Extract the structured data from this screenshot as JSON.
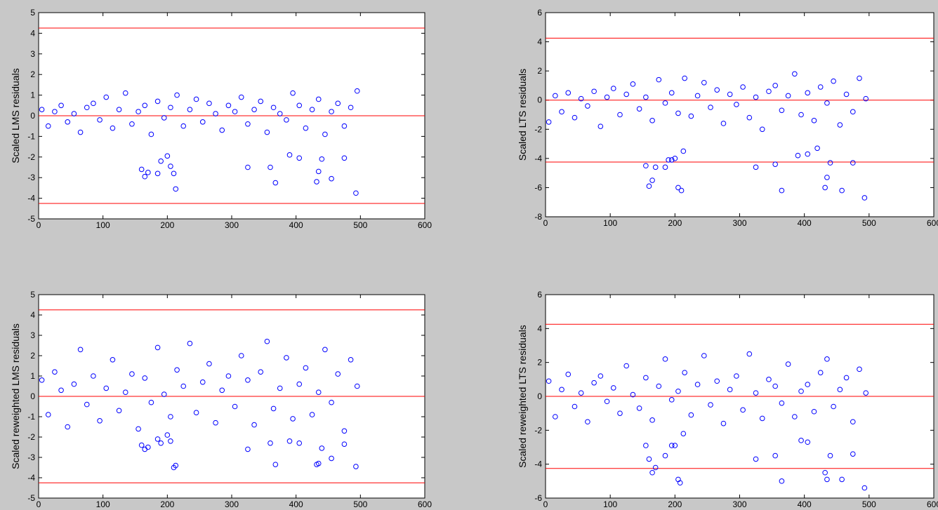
{
  "chart_data": [
    {
      "type": "scatter",
      "y_label": "Scaled LMS residuals",
      "color": "#0000ff",
      "hlines": [
        4.25,
        0,
        -4.25
      ],
      "hline_color": "#ff0000",
      "xlim": [
        0,
        600
      ],
      "xticks": [
        0,
        100,
        200,
        300,
        400,
        500,
        600
      ],
      "ylim": [
        -5,
        5
      ],
      "yticks": [
        -5,
        -4,
        -3,
        -2,
        -1,
        0,
        1,
        2,
        3,
        4,
        5
      ],
      "x": [
        5,
        15,
        25,
        35,
        45,
        55,
        65,
        75,
        85,
        95,
        105,
        115,
        125,
        135,
        145,
        155,
        165,
        175,
        185,
        195,
        205,
        215,
        225,
        235,
        245,
        255,
        265,
        275,
        285,
        295,
        305,
        315,
        325,
        335,
        345,
        355,
        365,
        375,
        385,
        395,
        405,
        415,
        425,
        435,
        445,
        455,
        465,
        475,
        485,
        495,
        160,
        165,
        170,
        185,
        190,
        200,
        205,
        210,
        213,
        325,
        360,
        368,
        390,
        405,
        432,
        435,
        440,
        455,
        475,
        493
      ],
      "values": [
        0.3,
        -0.5,
        0.2,
        0.5,
        -0.3,
        0.1,
        -0.8,
        0.4,
        0.6,
        -0.2,
        0.9,
        -0.6,
        0.3,
        1.1,
        -0.4,
        0.2,
        0.5,
        -0.9,
        0.7,
        -0.1,
        0.4,
        1.0,
        -0.5,
        0.3,
        0.8,
        -0.3,
        0.6,
        0.1,
        -0.7,
        0.5,
        0.2,
        0.9,
        -0.4,
        0.3,
        0.7,
        -0.8,
        0.4,
        0.1,
        -0.2,
        1.1,
        0.5,
        -0.6,
        0.3,
        0.8,
        -0.9,
        0.2,
        0.6,
        -0.5,
        0.4,
        1.2,
        -2.6,
        -2.95,
        -2.75,
        -2.8,
        -2.2,
        -1.95,
        -2.45,
        -2.8,
        -3.55,
        -2.5,
        -2.5,
        -3.25,
        -1.9,
        -2.05,
        -3.2,
        -2.7,
        -2.1,
        -3.05,
        -2.05,
        -3.75
      ]
    },
    {
      "type": "scatter",
      "y_label": "Scaled LTS residuals",
      "color": "#0000ff",
      "hlines": [
        4.25,
        0,
        -4.25
      ],
      "hline_color": "#ff0000",
      "xlim": [
        0,
        600
      ],
      "xticks": [
        0,
        100,
        200,
        300,
        400,
        500,
        600
      ],
      "ylim": [
        -8,
        6
      ],
      "yticks": [
        -8,
        -6,
        -4,
        -2,
        0,
        2,
        4,
        6
      ],
      "x": [
        5,
        15,
        25,
        35,
        45,
        55,
        65,
        75,
        85,
        95,
        105,
        115,
        125,
        135,
        145,
        155,
        165,
        175,
        185,
        195,
        205,
        215,
        225,
        235,
        245,
        255,
        265,
        275,
        285,
        295,
        305,
        315,
        325,
        335,
        345,
        355,
        365,
        375,
        385,
        395,
        405,
        415,
        425,
        435,
        445,
        455,
        465,
        475,
        485,
        495,
        155,
        160,
        165,
        170,
        185,
        190,
        195,
        200,
        205,
        210,
        213,
        325,
        355,
        365,
        390,
        405,
        420,
        432,
        435,
        440,
        458,
        475,
        493
      ],
      "values": [
        -1.5,
        0.3,
        -0.8,
        0.5,
        -1.2,
        0.1,
        -0.4,
        0.6,
        -1.8,
        0.2,
        0.8,
        -1.0,
        0.4,
        1.1,
        -0.6,
        0.2,
        -1.4,
        1.4,
        -0.2,
        0.5,
        -0.9,
        1.5,
        -1.1,
        0.3,
        1.2,
        -0.5,
        0.7,
        -1.6,
        0.4,
        -0.3,
        0.9,
        -1.2,
        0.2,
        -2.0,
        0.6,
        1.0,
        -0.7,
        0.3,
        1.8,
        -1.0,
        0.5,
        -1.4,
        0.9,
        -0.2,
        1.3,
        -1.7,
        0.4,
        -0.8,
        1.5,
        0.1,
        -4.5,
        -5.9,
        -5.5,
        -4.6,
        -4.6,
        -4.1,
        -4.1,
        -4.0,
        -6.0,
        -6.2,
        -3.5,
        -4.6,
        -4.4,
        -6.2,
        -3.8,
        -3.7,
        -3.3,
        -6.0,
        -5.3,
        -4.3,
        -6.2,
        -4.3,
        -6.7
      ]
    },
    {
      "type": "scatter",
      "y_label": "Scaled reweighted LMS residuals",
      "color": "#0000ff",
      "hlines": [
        4.25,
        0,
        -4.25
      ],
      "hline_color": "#ff0000",
      "xlim": [
        0,
        600
      ],
      "xticks": [
        0,
        100,
        200,
        300,
        400,
        500,
        600
      ],
      "ylim": [
        -5,
        5
      ],
      "yticks": [
        -5,
        -4,
        -3,
        -2,
        -1,
        0,
        1,
        2,
        3,
        4,
        5
      ],
      "x": [
        5,
        15,
        25,
        35,
        45,
        55,
        65,
        75,
        85,
        95,
        105,
        115,
        125,
        135,
        145,
        155,
        165,
        175,
        185,
        195,
        205,
        215,
        225,
        235,
        245,
        255,
        265,
        275,
        285,
        295,
        305,
        315,
        325,
        335,
        345,
        355,
        365,
        375,
        385,
        395,
        405,
        415,
        425,
        435,
        445,
        455,
        465,
        475,
        485,
        495,
        160,
        165,
        170,
        185,
        190,
        200,
        205,
        210,
        213,
        325,
        360,
        368,
        390,
        405,
        432,
        435,
        440,
        455,
        475,
        493
      ],
      "values": [
        0.8,
        -0.9,
        1.2,
        0.3,
        -1.5,
        0.6,
        2.3,
        -0.4,
        1.0,
        -1.2,
        0.4,
        1.8,
        -0.7,
        0.2,
        1.1,
        -1.6,
        0.9,
        -0.3,
        2.4,
        0.1,
        -1.0,
        1.3,
        0.5,
        2.6,
        -0.8,
        0.7,
        1.6,
        -1.3,
        0.3,
        1.0,
        -0.5,
        2.0,
        0.8,
        -1.4,
        1.2,
        2.7,
        -0.6,
        0.4,
        1.9,
        -1.1,
        0.6,
        1.4,
        -0.9,
        0.2,
        2.3,
        -0.3,
        1.1,
        -1.7,
        1.8,
        0.5,
        -2.4,
        -2.6,
        -2.5,
        -2.1,
        -2.3,
        -1.9,
        -2.2,
        -3.5,
        -3.4,
        -2.6,
        -2.3,
        -3.35,
        -2.2,
        -2.3,
        -3.35,
        -3.3,
        -2.55,
        -3.05,
        -2.35,
        -3.45
      ]
    },
    {
      "type": "scatter",
      "y_label": "Scaled reweighted LTS residuals",
      "color": "#0000ff",
      "hlines": [
        4.25,
        0,
        -4.25
      ],
      "hline_color": "#ff0000",
      "xlim": [
        0,
        600
      ],
      "xticks": [
        0,
        100,
        200,
        300,
        400,
        500,
        600
      ],
      "ylim": [
        -6,
        6
      ],
      "yticks": [
        -6,
        -4,
        -2,
        0,
        2,
        4,
        6
      ],
      "x": [
        5,
        15,
        25,
        35,
        45,
        55,
        65,
        75,
        85,
        95,
        105,
        115,
        125,
        135,
        145,
        155,
        165,
        175,
        185,
        195,
        205,
        215,
        225,
        235,
        245,
        255,
        265,
        275,
        285,
        295,
        305,
        315,
        325,
        335,
        345,
        355,
        365,
        375,
        385,
        395,
        405,
        415,
        425,
        435,
        445,
        455,
        465,
        475,
        485,
        495,
        155,
        160,
        165,
        170,
        185,
        195,
        200,
        205,
        208,
        213,
        325,
        355,
        365,
        395,
        405,
        432,
        435,
        440,
        458,
        475,
        493
      ],
      "values": [
        0.9,
        -1.2,
        0.4,
        1.3,
        -0.6,
        0.2,
        -1.5,
        0.8,
        1.2,
        -0.3,
        0.5,
        -1.0,
        1.8,
        0.1,
        -0.7,
        1.1,
        -1.4,
        0.6,
        2.2,
        -0.2,
        0.3,
        1.4,
        -1.1,
        0.7,
        2.4,
        -0.5,
        0.9,
        -1.6,
        0.4,
        1.2,
        -0.8,
        2.5,
        0.2,
        -1.3,
        1.0,
        0.6,
        -0.4,
        1.9,
        -1.2,
        0.3,
        0.7,
        -0.9,
        1.4,
        2.2,
        -0.6,
        0.4,
        1.1,
        -1.5,
        1.6,
        0.2,
        -2.9,
        -3.7,
        -4.5,
        -4.2,
        -3.5,
        -2.9,
        -2.9,
        -4.9,
        -5.1,
        -2.2,
        -3.7,
        -3.5,
        -5.0,
        -2.6,
        -2.7,
        -4.5,
        -4.9,
        -3.5,
        -4.9,
        -3.4,
        -5.4
      ]
    }
  ]
}
